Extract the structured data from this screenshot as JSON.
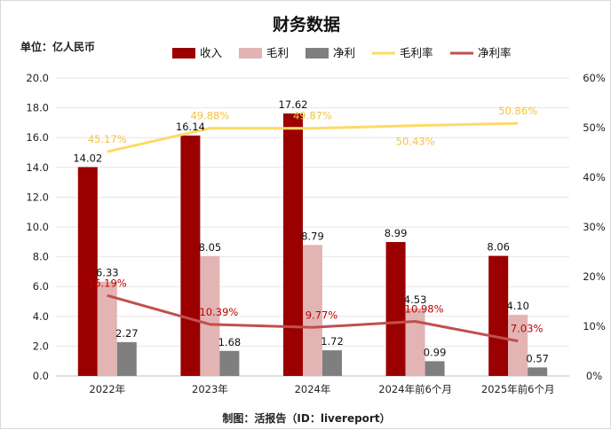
{
  "chart_data": {
    "type": "bar",
    "title": "财务数据",
    "unit_label": "单位：亿人民币",
    "source": "制图：活报告（ID：livereport）",
    "categories": [
      "2022年",
      "2023年",
      "2024年",
      "2024年前6个月",
      "2025年前6个月"
    ],
    "y_left": {
      "min": 0,
      "max": 20,
      "ticks": [
        "0.0",
        "2.0",
        "4.0",
        "6.0",
        "8.0",
        "10.0",
        "12.0",
        "14.0",
        "16.0",
        "18.0",
        "20.0"
      ]
    },
    "y_right": {
      "min": 0,
      "max": 60,
      "ticks": [
        "0%",
        "10%",
        "20%",
        "30%",
        "40%",
        "50%",
        "60%"
      ]
    },
    "bar_series": [
      {
        "name": "收入",
        "color": "#9b0000",
        "values": [
          14.02,
          16.14,
          17.62,
          8.99,
          8.06
        ],
        "labels": [
          "14.02",
          "16.14",
          "17.62",
          "8.99",
          "8.06"
        ]
      },
      {
        "name": "毛利",
        "color": "#e3b4b4",
        "values": [
          6.33,
          8.05,
          8.79,
          4.53,
          4.1
        ],
        "labels": [
          "6.33",
          "8.05",
          "8.79",
          "4.53",
          "4.10"
        ]
      },
      {
        "name": "净利",
        "color": "#7f7f7f",
        "values": [
          2.27,
          1.68,
          1.72,
          0.99,
          0.57
        ],
        "labels": [
          "2.27",
          "1.68",
          "1.72",
          "0.99",
          "0.57"
        ]
      }
    ],
    "line_series": [
      {
        "name": "毛利率",
        "color": "#ffd966",
        "label_color": "#f5c242",
        "values": [
          45.17,
          49.88,
          49.87,
          50.43,
          50.86
        ],
        "labels": [
          "45.17%",
          "49.88%",
          "49.87%",
          "50.43%",
          "50.86%"
        ]
      },
      {
        "name": "净利率",
        "color": "#c0504d",
        "label_color": "#c00000",
        "values": [
          16.19,
          10.39,
          9.77,
          10.98,
          7.03
        ],
        "labels": [
          "16.19%",
          "10.39%",
          "9.77%",
          "10.98%",
          "7.03%"
        ]
      }
    ],
    "legend_position": "top"
  }
}
